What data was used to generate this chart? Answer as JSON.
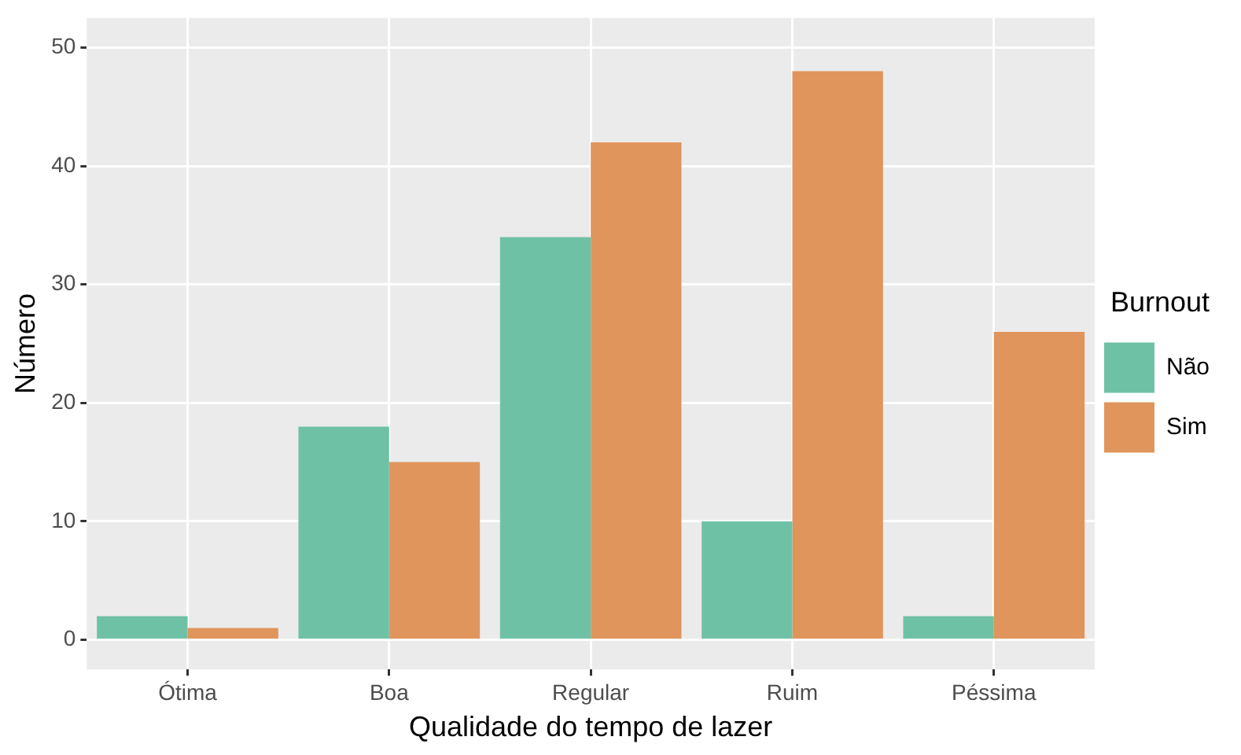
{
  "chart_data": {
    "type": "bar",
    "xlabel": "Qualidade do tempo de lazer",
    "ylabel": "Número",
    "legend_title": "Burnout",
    "categories": [
      "Ótima",
      "Boa",
      "Regular",
      "Ruim",
      "Péssima"
    ],
    "series": [
      {
        "name": "Não",
        "color": "#6fc1a5",
        "values": [
          2,
          18,
          34,
          10,
          2
        ]
      },
      {
        "name": "Sim",
        "color": "#e0955c",
        "values": [
          1,
          15,
          42,
          48,
          26
        ]
      }
    ],
    "ylim": [
      -2.5,
      52.5
    ],
    "yticks": [
      0,
      10,
      20,
      30,
      40,
      50
    ],
    "grid": true,
    "legend": "right"
  }
}
